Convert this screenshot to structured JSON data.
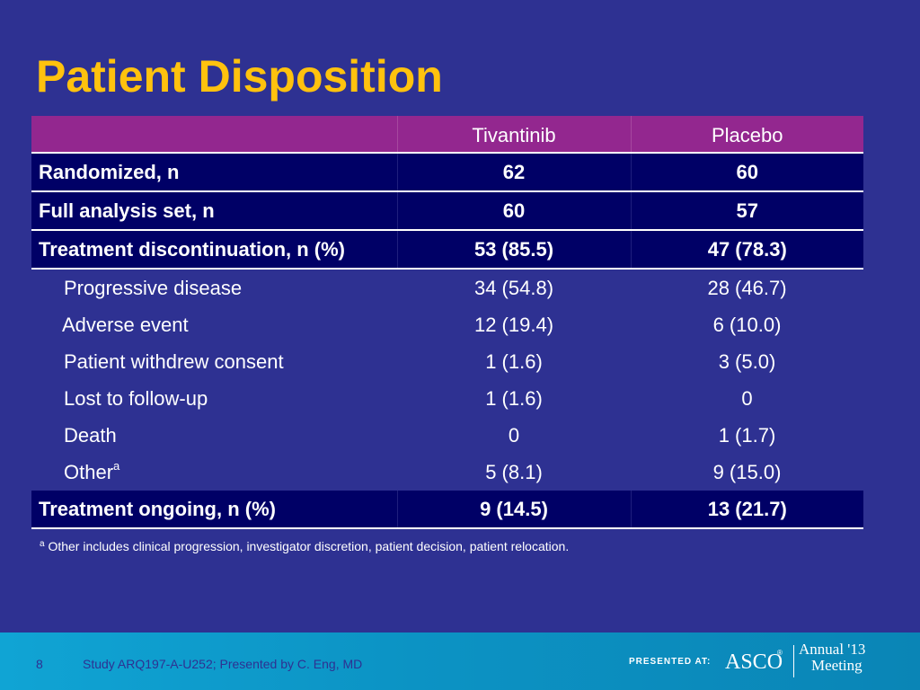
{
  "slide": {
    "title": "Patient Disposition"
  },
  "table": {
    "header": {
      "col1": "",
      "col2": "Tivantinib",
      "col3": "Placebo"
    },
    "rows": [
      {
        "label": "Randomized, n",
        "tivantinib": "62",
        "placebo": "60"
      },
      {
        "label": "Full analysis set, n",
        "tivantinib": "60",
        "placebo": "57"
      },
      {
        "label": "Treatment discontinuation, n (%)",
        "tivantinib": "53 (85.5)",
        "placebo": "47 (78.3)"
      },
      {
        "label": "Progressive disease",
        "tivantinib": "34 (54.8)",
        "placebo": "28 (46.7)"
      },
      {
        "label": "Adverse event",
        "tivantinib": "12 (19.4)",
        "placebo": "6 (10.0)"
      },
      {
        "label": "Patient withdrew consent",
        "tivantinib": "1 (1.6)",
        "placebo": "3 (5.0)"
      },
      {
        "label": "Lost to follow-up",
        "tivantinib": "1 (1.6)",
        "placebo": "0"
      },
      {
        "label": "Death",
        "tivantinib": "0",
        "placebo": "1 (1.7)"
      },
      {
        "label": "Other",
        "label_sup": "a",
        "tivantinib": "5 (8.1)",
        "placebo": "9 (15.0)"
      },
      {
        "label": "Treatment ongoing, n (%)",
        "tivantinib": "9 (14.5)",
        "placebo": "13 (21.7)"
      }
    ]
  },
  "footnote": {
    "marker": "a",
    "text": " Other includes clinical progression, investigator discretion, patient decision, patient relocation."
  },
  "footer": {
    "page_number": "8",
    "citation": "Study ARQ197-A-U252; Presented by C. Eng, MD",
    "presented_at": "PRESENTED AT:",
    "logo_text": "ASCO",
    "logo_reg": "®",
    "meeting_line1": "Annual '13",
    "meeting_line2": "Meeting"
  },
  "colors": {
    "background": "#2e3192",
    "title": "#ffc20e",
    "header_row": "#93278f",
    "bold_row": "#000066",
    "footer_bar": "#0c93c4"
  }
}
